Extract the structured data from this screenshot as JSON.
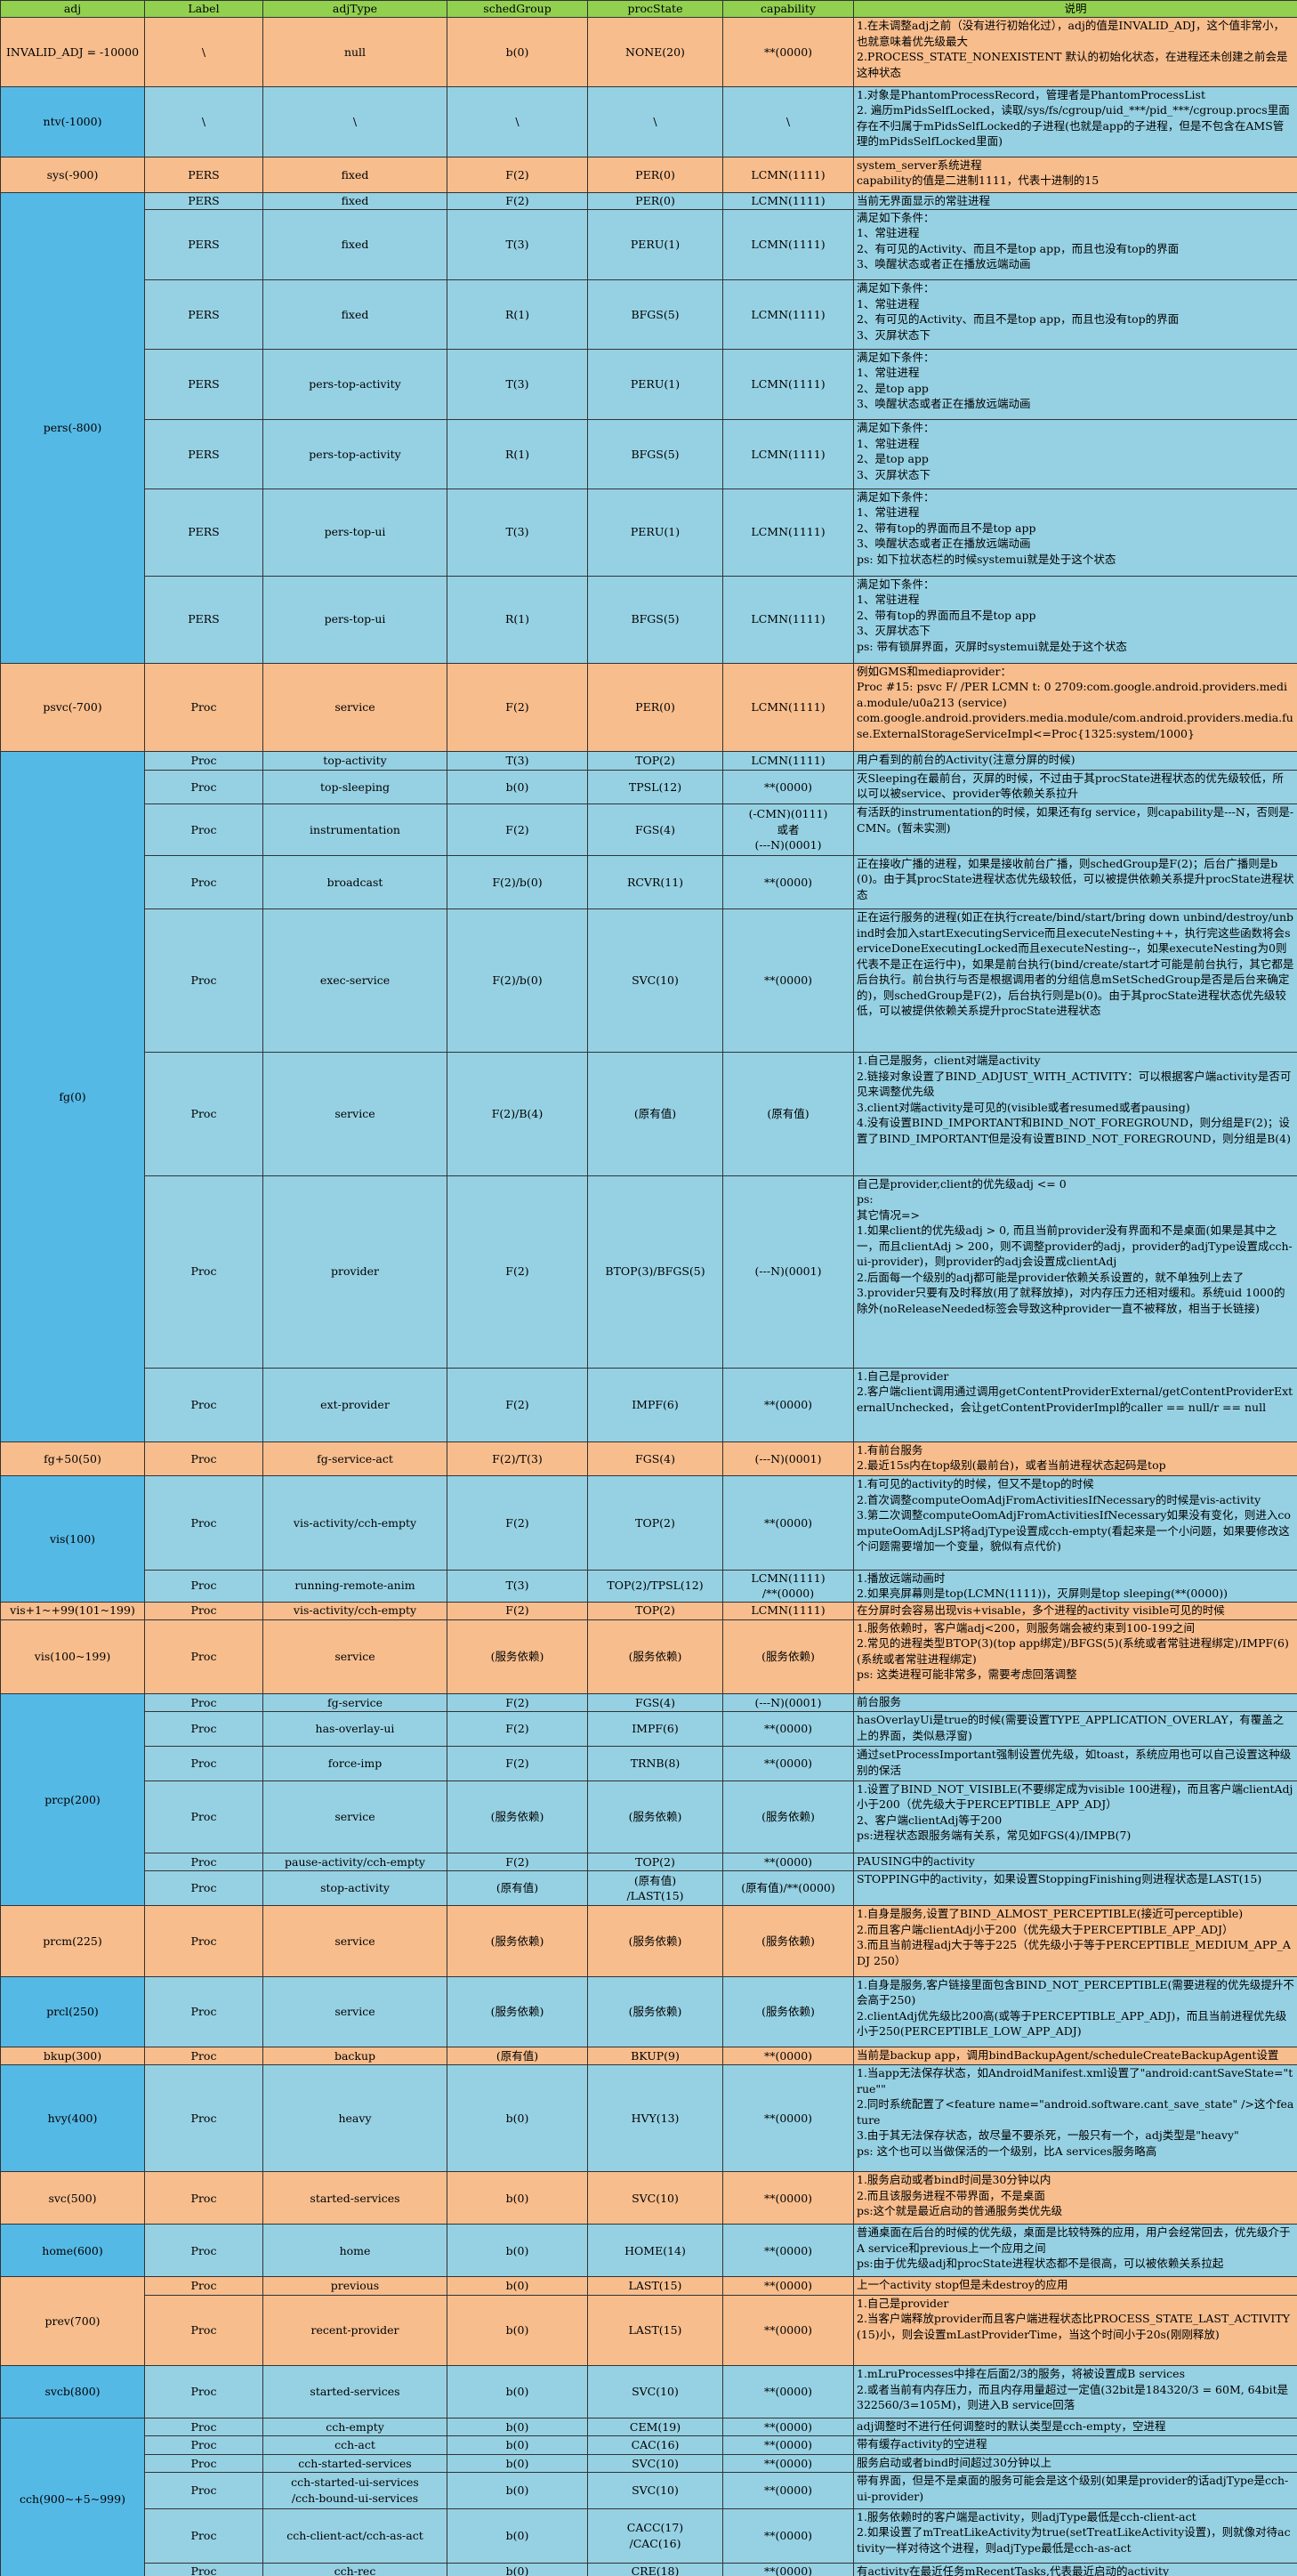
{
  "table": {
    "header": [
      "adj",
      "Label",
      "adjType",
      "schedGroup",
      "procState",
      "capability",
      "说明"
    ],
    "groups": [
      {
        "adj": "INVALID_ADJ = -10000",
        "adj_color": "#f7bd8d",
        "row_color": "#f7bd8d",
        "rows": [
          [
            "\\",
            "null",
            "b(0)",
            "NONE(20)",
            "**(0000)",
            [
              "1.在未调整adj之前（没有进行初始化过），adj的值是INVALID_ADJ，这个值非常小，也就意味着优先级最大",
              "2.PROCESS_STATE_NONEXISTENT 默认的初始化状态，在进程还未创建之前会是这种状态"
            ]
          ]
        ]
      },
      {
        "adj": "ntv(-1000)",
        "adj_color": "#55b9e6",
        "row_color": "#96d1e3",
        "rows": [
          [
            "\\",
            "\\",
            "\\",
            "\\",
            "\\",
            [
              "1.对象是PhantomProcessRecord，管理者是PhantomProcessList",
              "2. 遍历mPidsSelfLocked，读取/sys/fs/cgroup/uid_***/pid_***/cgroup.procs里面存在不归属于mPidsSelfLocked的子进程(也就是app的子进程，但是不包含在AMS管理的mPidsSelfLocked里面)"
            ]
          ]
        ]
      },
      {
        "adj": "sys(-900)",
        "adj_color": "#f7bd8d",
        "row_color": "#f7bd8d",
        "rows": [
          [
            "PERS",
            "fixed",
            "F(2)",
            "PER(0)",
            "LCMN(1111)",
            [
              "system_server系统进程",
              "capability的值是二进制1111，代表十进制的15"
            ]
          ]
        ]
      },
      {
        "adj": "pers(-800)",
        "adj_color": "#55b9e6",
        "row_color": "#96d1e3",
        "rows": [
          [
            "PERS",
            "fixed",
            "F(2)",
            "PER(0)",
            "LCMN(1111)",
            [
              "当前无界面显示的常驻进程"
            ]
          ],
          [
            "PERS",
            "fixed",
            "T(3)",
            "PERU(1)",
            "LCMN(1111)",
            [
              "满足如下条件：",
              "1、常驻进程",
              "2、有可见的Activity、而且不是top app，而且也没有top的界面",
              "3、唤醒状态或者正在播放远端动画"
            ]
          ],
          [
            "PERS",
            "fixed",
            "R(1)",
            "BFGS(5)",
            "LCMN(1111)",
            [
              "满足如下条件：",
              "1、常驻进程",
              "2、有可见的Activity、而且不是top app，而且也没有top的界面",
              "3、灭屏状态下"
            ]
          ],
          [
            "PERS",
            "pers-top-activity",
            "T(3)",
            "PERU(1)",
            "LCMN(1111)",
            [
              "满足如下条件：",
              "1、常驻进程",
              "2、是top app",
              "3、唤醒状态或者正在播放远端动画"
            ]
          ],
          [
            "PERS",
            "pers-top-activity",
            "R(1)",
            "BFGS(5)",
            "LCMN(1111)",
            [
              "满足如下条件：",
              "1、常驻进程",
              "2、是top app",
              "3、灭屏状态下"
            ]
          ],
          [
            "PERS",
            "pers-top-ui",
            "T(3)",
            "PERU(1)",
            "LCMN(1111)",
            [
              "满足如下条件：",
              "1、常驻进程",
              "2、带有top的界面而且不是top app",
              "3、唤醒状态或者正在播放远端动画",
              "ps: 如下拉状态栏的时候systemui就是处于这个状态"
            ]
          ],
          [
            "PERS",
            "pers-top-ui",
            "R(1)",
            "BFGS(5)",
            "LCMN(1111)",
            [
              "满足如下条件：",
              "1、常驻进程",
              "2、带有top的界面而且不是top app",
              "3、灭屏状态下",
              "ps: 带有锁屏界面，灭屏时systemui就是处于这个状态"
            ]
          ]
        ]
      },
      {
        "adj": "psvc(-700)",
        "adj_color": "#f7bd8d",
        "row_color": "#f7bd8d",
        "rows": [
          [
            "Proc",
            "service",
            "F(2)",
            "PER(0)",
            "LCMN(1111)",
            [
              "例如GMS和mediaprovider：",
              "Proc #15: psvc   F/ /PER  LCMN  t: 0 2709:com.google.android.providers.media.module/u0a213 (service)",
              "com.google.android.providers.media.module/com.android.providers.media.fuse.ExternalStorageServiceImpl<=Proc{1325:system/1000}"
            ]
          ]
        ]
      },
      {
        "adj": "fg(0)",
        "adj_color": "#55b9e6",
        "row_color": "#96d1e3",
        "rows": [
          [
            "Proc",
            "top-activity",
            "T(3)",
            "TOP(2)",
            "LCMN(1111)",
            [
              "用户看到的前台的Activity(注意分屏的时候)"
            ]
          ],
          [
            "Proc",
            "top-sleeping",
            "b(0)",
            "TPSL(12)",
            "**(0000)",
            [
              "灭Sleeping在最前台，灭屏的时候，不过由于其procState进程状态的优先级较低，所以可以被service、provider等依赖关系拉升"
            ]
          ],
          [
            "Proc",
            "instrumentation",
            "F(2)",
            "FGS(4)",
            [
              "(-CMN)(0111)",
              "或者",
              "(---N)(0001)"
            ],
            [
              "有活跃的instrumentation的时候，如果还有fg service，则capability是---N，否则是-CMN。(暂未实测)"
            ]
          ],
          [
            "Proc",
            "broadcast",
            "F(2)/b(0)",
            "RCVR(11)",
            "**(0000)",
            [
              "正在接收广播的进程，如果是接收前台广播，则schedGroup是F(2)；后台广播则是b(0)。由于其procState进程状态优先级较低，可以被提供依赖关系提升procState进程状态"
            ]
          ],
          [
            "Proc",
            "exec-service",
            "F(2)/b(0)",
            "SVC(10)",
            "**(0000)",
            [
              "正在运行服务的进程(如正在执行create/bind/start/bring down unbind/destroy/unbind时会加入startExecutingService而且executeNesting++，执行完这些函数将会serviceDoneExecutingLocked而且executeNesting--，如果executeNesting为0则代表不是正在运行中)，如果是前台执行(bind/create/start才可能是前台执行，其它都是后台执行。前台执行与否是根据调用者的分组信息mSetSchedGroup是否是后台来确定的)，则schedGroup是F(2)，后台执行则是b(0)。由于其procState进程状态优先级较低，可以被提供依赖关系提升procState进程状态"
            ]
          ],
          [
            "Proc",
            "service",
            "F(2)/B(4)",
            "(原有值)",
            "(原有值)",
            [
              "1.自己是服务，client对端是activity",
              "2.链接对象设置了BIND_ADJUST_WITH_ACTIVITY：可以根据客户端activity是否可见来调整优先级",
              "3.client对端activity是可见的(visible或者resumed或者pausing)",
              "4.没有设置BIND_IMPORTANT和BIND_NOT_FOREGROUND，则分组是F(2)；设置了BIND_IMPORTANT但是没有设置BIND_NOT_FOREGROUND，则分组是B(4)"
            ]
          ],
          [
            "Proc",
            "provider",
            "F(2)",
            "BTOP(3)/BFGS(5)",
            "(---N)(0001)",
            [
              "自己是provider,client的优先级adj <= 0",
              "ps:",
              "其它情况=>",
              "1.如果client的优先级adj > 0, 而且当前provider没有界面和不是桌面(如果是其中之一，而且clientAdj > 200，则不调整provider的adj，provider的adjType设置成cch-ui-provider)，则provider的adj会设置成clientAdj",
              "2.后面每一个级别的adj都可能是provider依赖关系设置的，就不单独列上去了",
              "3.provider只要有及时释放(用了就释放掉)，对内存压力还相对缓和。系统uid 1000的除外(noReleaseNeeded标签会导致这种provider一直不被释放，相当于长链接)"
            ]
          ],
          [
            "Proc",
            "ext-provider",
            "F(2)",
            "IMPF(6)",
            "**(0000)",
            [
              "1.自己是provider",
              "2.客户端client调用通过调用getContentProviderExternal/getContentProviderExternalUnchecked，会让getContentProviderImpl的caller == null/r == null"
            ]
          ]
        ]
      },
      {
        "adj": "fg+50(50)",
        "adj_color": "#f7bd8d",
        "row_color": "#f7bd8d",
        "rows": [
          [
            "Proc",
            "fg-service-act",
            "F(2)/T(3)",
            "FGS(4)",
            "(---N)(0001)",
            [
              "1.有前台服务",
              "2.最近15s内在top级别(最前台)，或者当前进程状态起码是top"
            ]
          ]
        ]
      },
      {
        "adj": "vis(100)",
        "adj_color": "#55b9e6",
        "row_color": "#96d1e3",
        "rows": [
          [
            "Proc",
            "vis-activity/cch-empty",
            "F(2)",
            "TOP(2)",
            "**(0000)",
            [
              "1.有可见的activity的时候，但又不是top的时候",
              "2.首次调整computeOomAdjFromActivitiesIfNecessary的时候是vis-activity",
              "3.第二次调整computeOomAdjFromActivitiesIfNecessary如果没有变化，则进入computeOomAdjLSP将adjType设置成cch-empty(看起来是一个小问题，如果要修改这个问题需要增加一个变量，貌似有点代价)"
            ]
          ],
          [
            "Proc",
            "running-remote-anim",
            "T(3)",
            "TOP(2)/TPSL(12)",
            [
              "LCMN(1111)",
              "/**(0000)"
            ],
            [
              "1.播放远端动画时",
              "2.如果亮屏幕则是top(LCMN(1111))，灭屏则是top sleeping(**(0000))"
            ]
          ]
        ]
      },
      {
        "adj": "vis+1~+99(101~199)",
        "adj_color": "#f7bd8d",
        "row_color": "#f7bd8d",
        "rows": [
          [
            "Proc",
            "vis-activity/cch-empty",
            "F(2)",
            "TOP(2)",
            "LCMN(1111)",
            [
              "在分屏时会容易出现vis+visable，多个进程的activity visible可见的时候"
            ]
          ]
        ]
      },
      {
        "adj": "vis(100~199)",
        "adj_color": "#f7bd8d",
        "row_color": "#f7bd8d",
        "rows": [
          [
            "Proc",
            "service",
            "(服务依赖)",
            "(服务依赖)",
            "(服务依赖)",
            [
              "1.服务依赖时，客户端adj<200，则服务端会被约束到100-199之间",
              "2.常见的进程类型BTOP(3)(top app绑定)/BFGS(5)(系统或者常驻进程绑定)/IMPF(6)(系统或者常驻进程绑定)",
              "ps: 这类进程可能非常多，需要考虑回落调整"
            ]
          ]
        ]
      },
      {
        "adj": "prcp(200)",
        "adj_color": "#55b9e6",
        "row_color": "#96d1e3",
        "rows": [
          [
            "Proc",
            "fg-service",
            "F(2)",
            "FGS(4)",
            "(---N)(0001)",
            [
              "前台服务"
            ]
          ],
          [
            "Proc",
            "has-overlay-ui",
            "F(2)",
            "IMPF(6)",
            "**(0000)",
            [
              "hasOverlayUi是true的时候(需要设置TYPE_APPLICATION_OVERLAY，有覆盖之上的界面，类似悬浮窗)"
            ]
          ],
          [
            "Proc",
            "force-imp",
            "F(2)",
            "TRNB(8)",
            "**(0000)",
            [
              "通过setProcessImportant强制设置优先级，如toast，系统应用也可以自己设置这种级别的保活"
            ]
          ],
          [
            "Proc",
            "service",
            "(服务依赖)",
            "(服务依赖)",
            "(服务依赖)",
            [
              "1.设置了BIND_NOT_VISIBLE(不要绑定成为visible 100进程)，而且客户端clientAdj小于200（优先级大于PERCEPTIBLE_APP_ADJ）",
              "2、客户端clientAdj等于200",
              "ps:进程状态跟服务端有关系，常见如FGS(4)/IMPB(7)"
            ]
          ],
          [
            "Proc",
            "pause-activity/cch-empty",
            "F(2)",
            "TOP(2)",
            "**(0000)",
            [
              "PAUSING中的activity"
            ]
          ],
          [
            "Proc",
            "stop-activity",
            "(原有值)",
            [
              "(原有值)",
              "/LAST(15)"
            ],
            "(原有值)/**(0000)",
            [
              "STOPPING中的activity，如果设置StoppingFinishing则进程状态是LAST(15)"
            ]
          ]
        ]
      },
      {
        "adj": "prcm(225)",
        "adj_color": "#f7bd8d",
        "row_color": "#f7bd8d",
        "rows": [
          [
            "Proc",
            "service",
            "(服务依赖)",
            "(服务依赖)",
            "(服务依赖)",
            [
              "1.自身是服务,设置了BIND_ALMOST_PERCEPTIBLE(接近可perceptible)",
              "2.而且客户端clientAdj小于200（优先级大于PERCEPTIBLE_APP_ADJ）",
              "3.而且当前进程adj大于等于225（优先级小于等于PERCEPTIBLE_MEDIUM_APP_ADJ 250）"
            ]
          ]
        ]
      },
      {
        "adj": "prcl(250)",
        "adj_color": "#55b9e6",
        "row_color": "#96d1e3",
        "rows": [
          [
            "Proc",
            "service",
            "(服务依赖)",
            "(服务依赖)",
            "(服务依赖)",
            [
              "1.自身是服务,客户链接里面包含BIND_NOT_PERCEPTIBLE(需要进程的优先级提升不会高于250)",
              "2.clientAdj优先级比200高(或等于PERCEPTIBLE_APP_ADJ)，而且当前进程优先级小于250(PERCEPTIBLE_LOW_APP_ADJ)"
            ]
          ]
        ]
      },
      {
        "adj": "bkup(300)",
        "adj_color": "#f7bd8d",
        "row_color": "#f7bd8d",
        "rows": [
          [
            "Proc",
            "backup",
            "(原有值)",
            "BKUP(9)",
            "**(0000)",
            [
              "当前是backup app，调用bindBackupAgent/scheduleCreateBackupAgent设置"
            ]
          ]
        ]
      },
      {
        "adj": "hvy(400)",
        "adj_color": "#55b9e6",
        "row_color": "#96d1e3",
        "rows": [
          [
            "Proc",
            "heavy",
            "b(0)",
            "HVY(13)",
            "**(0000)",
            [
              "1.当app无法保存状态，如AndroidManifest.xml设置了\"android:cantSaveState=\"true\"\"",
              "2.同时系统配置了<feature name=\"android.software.cant_save_state\" />这个feature",
              "3.由于其无法保存状态，故尽量不要杀死，一般只有一个，adj类型是\"heavy\"",
              "ps: 这个也可以当做保活的一个级别，比A services服务略高"
            ]
          ]
        ]
      },
      {
        "adj": "svc(500)",
        "adj_color": "#f7bd8d",
        "row_color": "#f7bd8d",
        "rows": [
          [
            "Proc",
            "started-services",
            "b(0)",
            "SVC(10)",
            "**(0000)",
            [
              "1.服务启动或者bind时间是30分钟以内",
              "2.而且该服务进程不带界面，不是桌面",
              "ps:这个就是最近启动的普通服务类优先级"
            ]
          ]
        ]
      },
      {
        "adj": "home(600)",
        "adj_color": "#55b9e6",
        "row_color": "#96d1e3",
        "rows": [
          [
            "Proc",
            "home",
            "b(0)",
            "HOME(14)",
            "**(0000)",
            [
              "普通桌面在后台的时候的优先级，桌面是比较特殊的应用，用户会经常回去，优先级介于A service和previous上一个应用之间",
              "ps:由于优先级adj和procState进程状态都不是很高，可以被依赖关系拉起"
            ]
          ]
        ]
      },
      {
        "adj": "prev(700)",
        "adj_color": "#f7bd8d",
        "row_color": "#f7bd8d",
        "rows": [
          [
            "Proc",
            "previous",
            "b(0)",
            "LAST(15)",
            "**(0000)",
            [
              "上一个activity stop但是未destroy的应用"
            ]
          ],
          [
            "Proc",
            "recent-provider",
            "b(0)",
            "LAST(15)",
            "**(0000)",
            [
              "1.自己是provider",
              "2.当客户端释放provider而且客户端进程状态比PROCESS_STATE_LAST_ACTIVITY(15)小，则会设置mLastProviderTime，当这个时间小于20s(刚刚释放)"
            ]
          ]
        ]
      },
      {
        "adj": "svcb(800)",
        "adj_color": "#55b9e6",
        "row_color": "#96d1e3",
        "rows": [
          [
            "Proc",
            "started-services",
            "b(0)",
            "SVC(10)",
            "**(0000)",
            [
              "1.mLruProcesses中排在后面2/3的服务，将被设置成B services",
              "2.或者当前有内存压力，而且内存用量超过一定值(32bit是184320/3 = 60M, 64bit是322560/3=105M)，则进入B service回落"
            ]
          ]
        ]
      },
      {
        "adj": "cch(900~+5~999)",
        "adj_color": "#55b9e6",
        "row_color": "#96d1e3",
        "rows": [
          [
            "Proc",
            "cch-empty",
            "b(0)",
            "CEM(19)",
            "**(0000)",
            [
              "adj调整时不进行任何调整时的默认类型是cch-empty，空进程"
            ]
          ],
          [
            "Proc",
            "cch-act",
            "b(0)",
            "CAC(16)",
            "**(0000)",
            [
              "带有缓存activity的空进程"
            ]
          ],
          [
            "Proc",
            "cch-started-services",
            "b(0)",
            "SVC(10)",
            "**(0000)",
            [
              "服务启动或者bind时间超过30分钟以上"
            ]
          ],
          [
            "Proc",
            [
              "cch-started-ui-services",
              "/cch-bound-ui-services"
            ],
            "b(0)",
            "SVC(10)",
            "**(0000)",
            [
              "带有界面，但是不是桌面的服务可能会是这个级别(如果是provider的话adjType是cch-ui-provider)"
            ]
          ],
          [
            "Proc",
            "cch-client-act/cch-as-act",
            "b(0)",
            [
              "CACC(17)",
              "/CAC(16)"
            ],
            "**(0000)",
            [
              "1.服务依赖时的客户端是activity，则adjType最低是cch-client-act",
              "2.如果设置了mTreatLikeActivity为true(setTreatLikeActivity设置)，则就像对待activity一样对待这个进程，则adjType最低是cch-as-act"
            ]
          ],
          [
            "Proc",
            "cch-rec",
            "b(0)",
            "CRE(18)",
            "**(0000)",
            [
              "有activity在最近任务mRecentTasks,代表最近启动的activity"
            ]
          ]
        ]
      }
    ]
  }
}
